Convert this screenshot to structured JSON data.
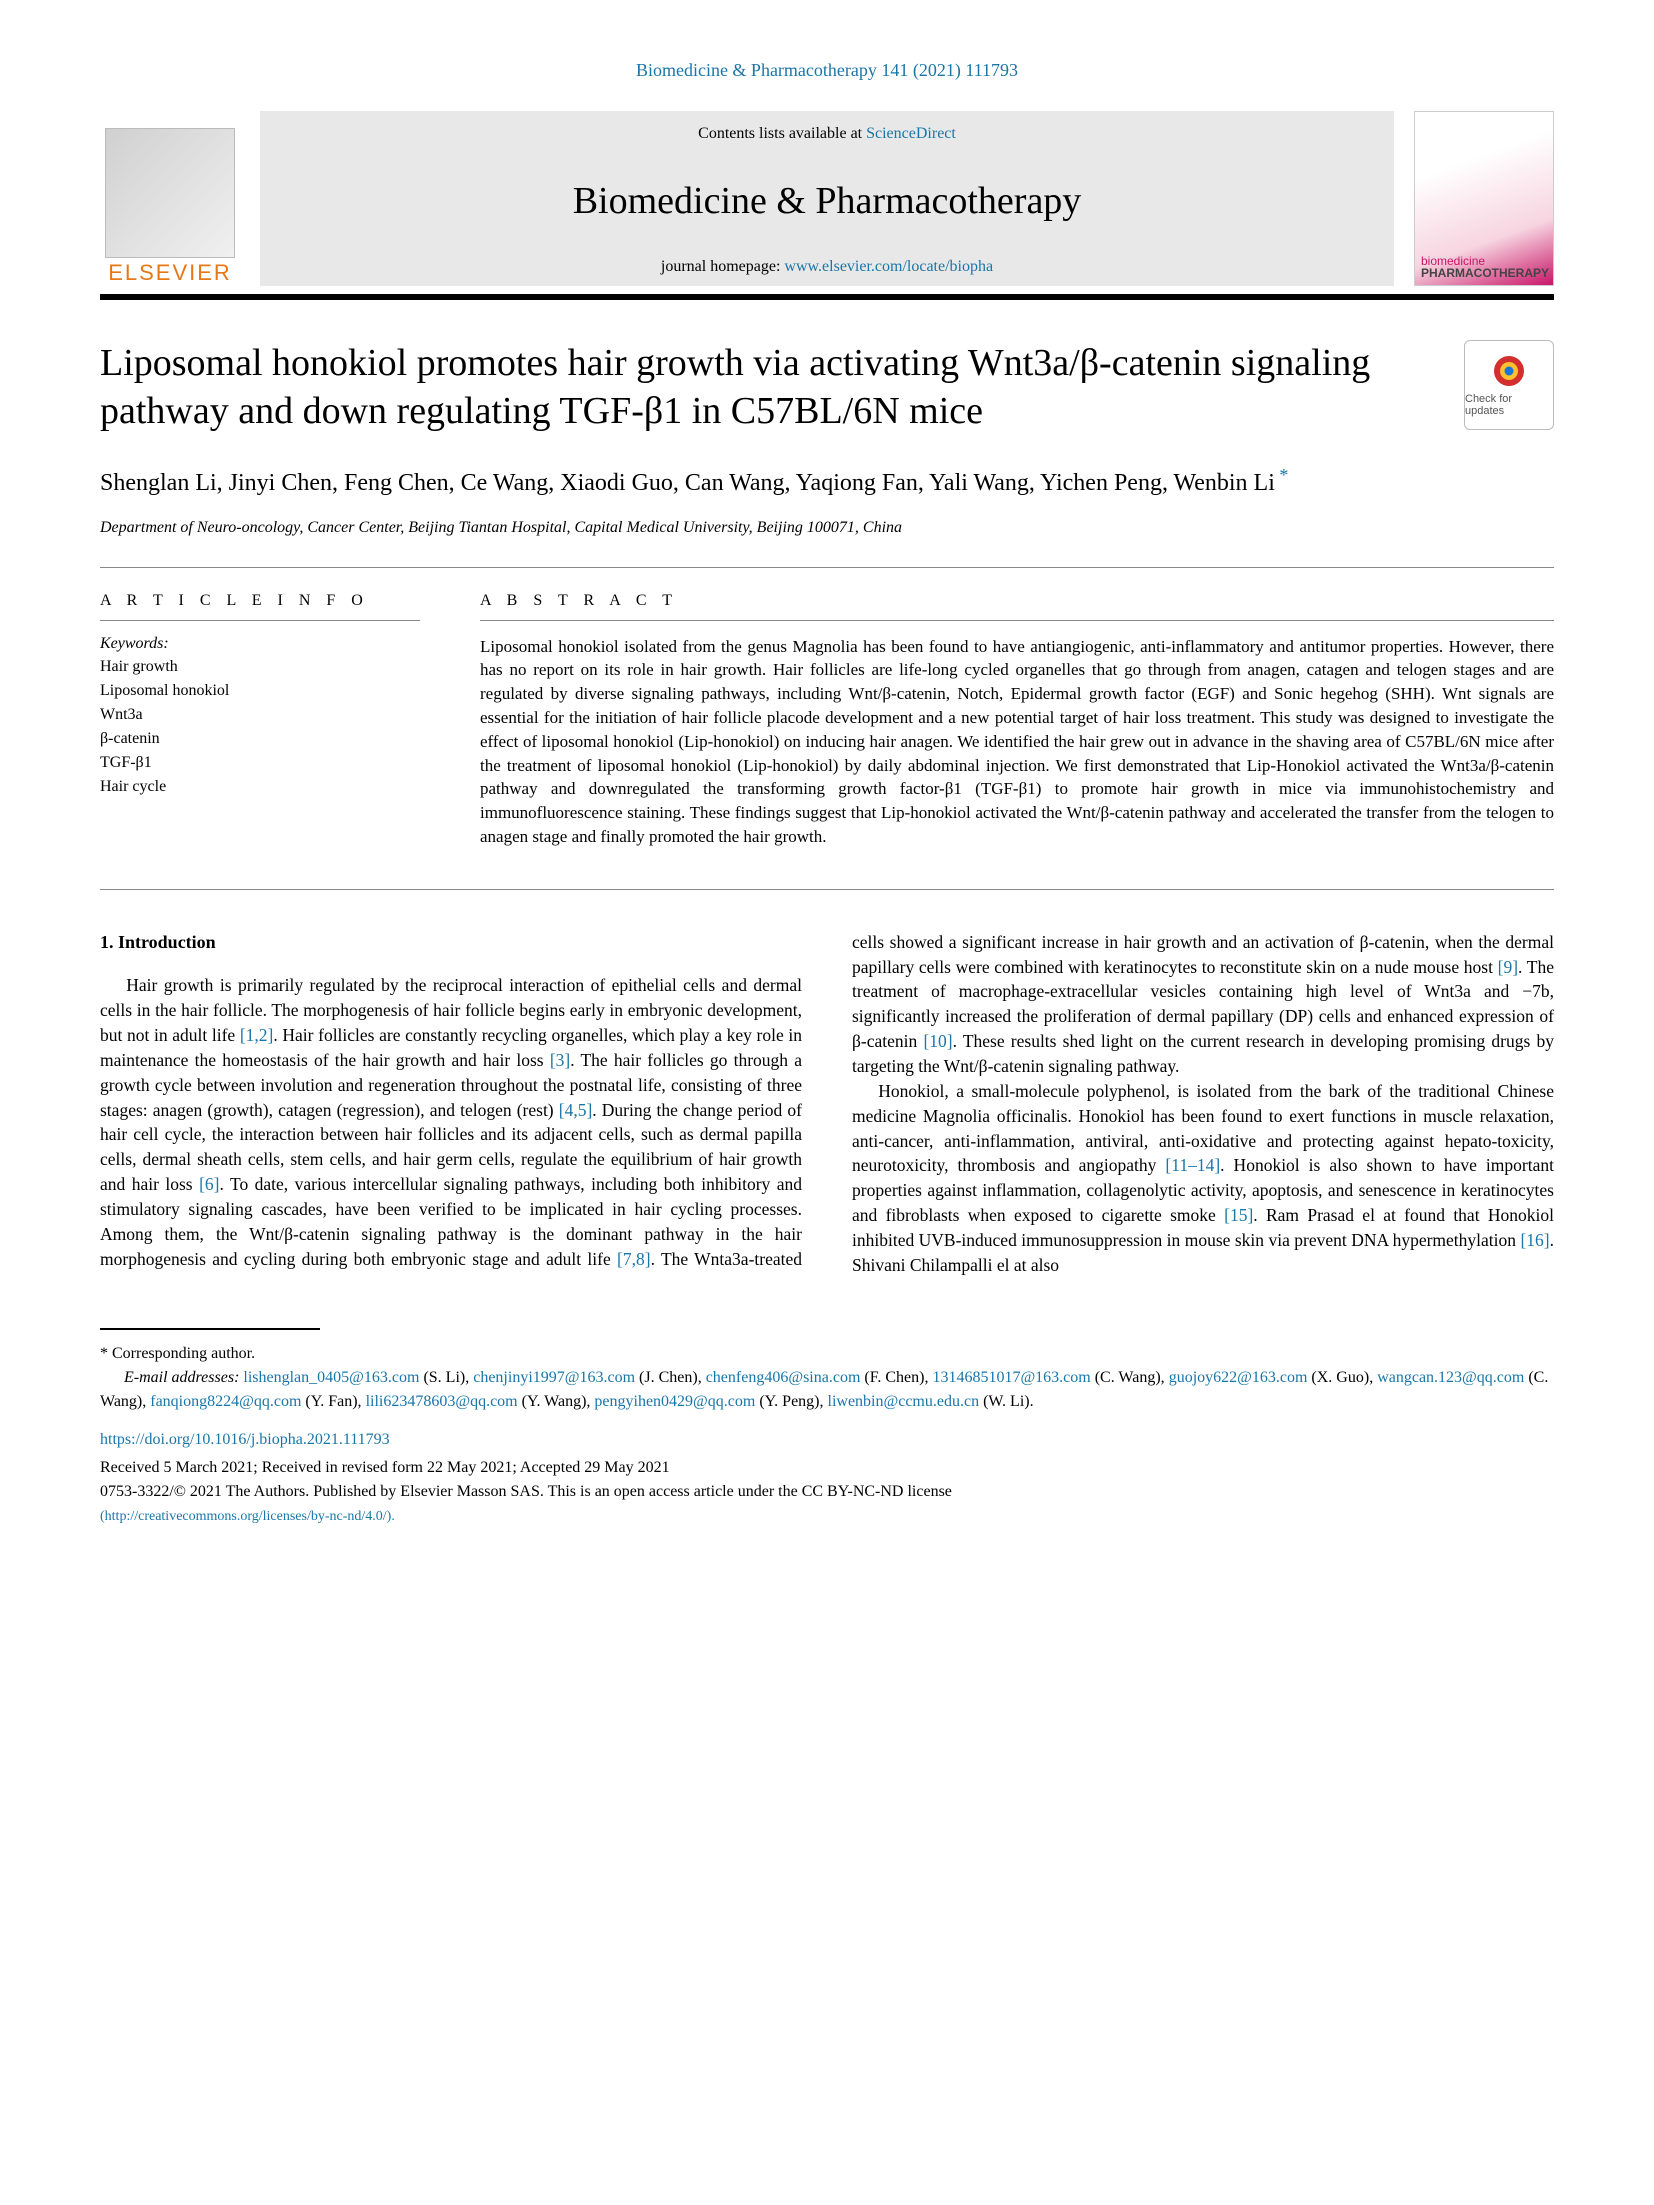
{
  "header": {
    "top_citation_prefix": "Biomedicine & Pharmacotherapy 141 (2021) 111793",
    "contents_prefix": "Contents lists available at ",
    "contents_link": "ScienceDirect",
    "journal_name": "Biomedicine & Pharmacotherapy",
    "homepage_prefix": "journal homepage: ",
    "homepage_url": "www.elsevier.com/locate/biopha",
    "publisher_logo_text": "ELSEVIER",
    "cover_line1": "biomedicine",
    "cover_line2": "PHARMACOTHERAPY",
    "check_updates_label": "Check for updates"
  },
  "article": {
    "title": "Liposomal honokiol promotes hair growth via activating Wnt3a/β-catenin signaling pathway and down regulating TGF-β1 in C57BL/6N mice",
    "authors": "Shenglan Li, Jinyi Chen, Feng Chen, Ce Wang, Xiaodi Guo, Can Wang, Yaqiong Fan, Yali Wang, Yichen Peng, Wenbin Li",
    "affiliation": "Department of Neuro-oncology, Cancer Center, Beijing Tiantan Hospital, Capital Medical University, Beijing 100071, China"
  },
  "info": {
    "heading": "A R T I C L E   I N F O",
    "keywords_label": "Keywords:",
    "keywords": [
      "Hair growth",
      "Liposomal honokiol",
      "Wnt3a",
      "β-catenin",
      "TGF-β1",
      "Hair cycle"
    ]
  },
  "abstract": {
    "heading": "A B S T R A C T",
    "text": "Liposomal honokiol isolated from the genus Magnolia has been found to have antiangiogenic, anti-inflammatory and antitumor properties. However, there has no report on its role in hair growth. Hair follicles are life-long cycled organelles that go through from anagen, catagen and telogen stages and are regulated by diverse signaling pathways, including Wnt/β-catenin, Notch, Epidermal growth factor (EGF) and Sonic hegehog (SHH). Wnt signals are essential for the initiation of hair follicle placode development and a new potential target of hair loss treatment. This study was designed to investigate the effect of liposomal honokiol (Lip-honokiol) on inducing hair anagen. We identified the hair grew out in advance in the shaving area of C57BL/6N mice after the treatment of liposomal honokiol (Lip-honokiol) by daily abdominal injection. We first demonstrated that Lip-Honokiol activated the Wnt3a/β-catenin pathway and downregulated the transforming growth factor-β1 (TGF-β1) to promote hair growth in mice via immunohistochemistry and immunofluorescence staining. These findings suggest that Lip-honokiol activated the Wnt/β-catenin pathway and accelerated the transfer from the telogen to anagen stage and finally promoted the hair growth."
  },
  "section1": {
    "heading": "1. Introduction",
    "para1_a": "Hair growth is primarily regulated by the reciprocal interaction of epithelial cells and dermal cells in the hair follicle. The morphogenesis of hair follicle begins early in embryonic development, but not in adult life ",
    "ref1": "[1,2]",
    "para1_b": ". Hair follicles are constantly recycling organelles, which play a key role in maintenance the homeostasis of the hair growth and hair loss ",
    "ref2": "[3]",
    "para1_c": ". The hair follicles go through a growth cycle between involution and regeneration throughout the postnatal life, consisting of three stages: anagen (growth), catagen (regression), and telogen (rest) ",
    "ref3": "[4,5]",
    "para1_d": ". During the change period of hair cell cycle, the interaction between hair follicles and its adjacent cells, such as dermal papilla cells, dermal sheath cells, stem cells, and hair germ cells, regulate the equilibrium of hair growth and hair loss ",
    "ref4": "[6]",
    "para1_e": ". To date, various intercellular signaling pathways, including both inhibitory and stimulatory signaling cascades, have been verified to be implicated in hair cycling processes. Among them, the Wnt/β-catenin signaling pathway is the dominant pathway in the hair morphogenesis and cycling during both embryonic stage and adult life ",
    "ref5": "[7,8]",
    "para1_f": ". The Wnta3a-treated cells showed a significant increase in hair growth and an activation of β-catenin, when the dermal papillary cells were combined with keratinocytes to reconstitute skin on a nude mouse host ",
    "ref6": "[9]",
    "para1_g": ". The treatment of macrophage-extracellular vesicles containing high level of Wnt3a and −7b, significantly increased the proliferation of dermal papillary (DP) cells and enhanced expression of β-catenin ",
    "ref7": "[10]",
    "para1_h": ". These results shed light on the current research in developing promising drugs by targeting the Wnt/β-catenin signaling pathway.",
    "para2_a": "Honokiol, a small-molecule polyphenol, is isolated from the bark of the traditional Chinese medicine Magnolia officinalis. Honokiol has been found to exert functions in muscle relaxation, anti-cancer, anti-inflammation, antiviral, anti-oxidative and protecting against hepato-toxicity, neurotoxicity, thrombosis and angiopathy ",
    "ref8": "[11–14]",
    "para2_b": ". Honokiol is also shown to have important properties against inflammation, collagenolytic activity, apoptosis, and senescence in keratinocytes and fibroblasts when exposed to cigarette smoke ",
    "ref9": "[15]",
    "para2_c": ". Ram Prasad el at found that Honokiol inhibited UVB-induced immunosuppression in mouse skin via prevent DNA hypermethylation ",
    "ref10": "[16]",
    "para2_d": ". Shivani Chilampalli el at also"
  },
  "footer": {
    "corr_label": "* Corresponding author.",
    "email_label": "E-mail addresses: ",
    "emails": [
      {
        "addr": "lishenglan_0405@163.com",
        "who": "(S. Li)"
      },
      {
        "addr": "chenjinyi1997@163.com",
        "who": "(J. Chen)"
      },
      {
        "addr": "chenfeng406@sina.com",
        "who": "(F. Chen)"
      },
      {
        "addr": "13146851017@163.com",
        "who": "(C. Wang)"
      },
      {
        "addr": "guojoy622@163.com",
        "who": "(X. Guo)"
      },
      {
        "addr": "wangcan.123@qq.com",
        "who": "(C. Wang)"
      },
      {
        "addr": "fanqiong8224@qq.com",
        "who": "(Y. Fan)"
      },
      {
        "addr": "lili623478603@qq.com",
        "who": "(Y. Wang)"
      },
      {
        "addr": "pengyihen0429@qq.com",
        "who": "(Y. Peng)"
      },
      {
        "addr": "liwenbin@ccmu.edu.cn",
        "who": "(W. Li)."
      }
    ],
    "doi": "https://doi.org/10.1016/j.biopha.2021.111793",
    "history": "Received 5 March 2021; Received in revised form 22 May 2021; Accepted 29 May 2021",
    "copyright": "0753-3322/© 2021 The Authors.   Published by Elsevier Masson SAS. This is an open access article under the CC BY-NC-ND license",
    "license_url": "(http://creativecommons.org/licenses/by-nc-nd/4.0/)."
  }
}
